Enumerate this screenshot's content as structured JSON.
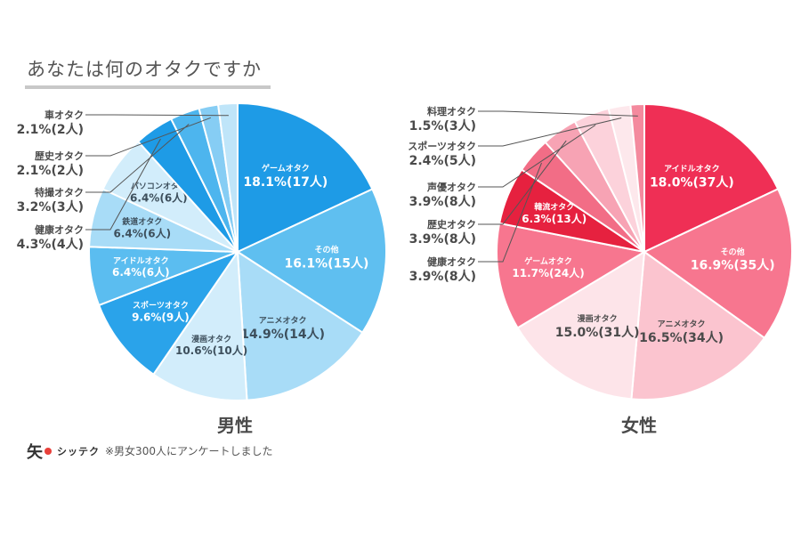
{
  "title": "あなたは何のオタクですか",
  "footnote": "※男女300人にアンケートしました",
  "logo": {
    "mark": "矢",
    "text": "シッテク"
  },
  "chart_data": [
    {
      "type": "pie",
      "label": "男性",
      "slices": [
        {
          "name": "ゲームオタク",
          "value": 18.1,
          "text": "18.1%(17人)",
          "color": "#1e9be6",
          "text_color": "#ffffff",
          "inside": true
        },
        {
          "name": "その他",
          "value": 16.1,
          "text": "16.1%(15人)",
          "color": "#5fbff0",
          "text_color": "#ffffff",
          "inside": true
        },
        {
          "name": "アニメオタク",
          "value": 14.9,
          "text": "14.9%(14人)",
          "color": "#a8dcf7",
          "text_color": "#3d4f5c",
          "inside": true
        },
        {
          "name": "漫画オタク",
          "value": 10.6,
          "text": "10.6%(10人)",
          "color": "#d2edfb",
          "text_color": "#3d4f5c",
          "inside": true
        },
        {
          "name": "スポーツオタク",
          "value": 9.6,
          "text": "9.6%(9人)",
          "color": "#2aa3ea",
          "text_color": "#ffffff",
          "inside": true
        },
        {
          "name": "アイドルオタク",
          "value": 6.4,
          "text": "6.4%(6人)",
          "color": "#5bbdf0",
          "text_color": "#ffffff",
          "inside": true
        },
        {
          "name": "鉄道オタク",
          "value": 6.4,
          "text": "6.4%(6人)",
          "color": "#a8dcf7",
          "text_color": "#3d4f5c",
          "inside": true
        },
        {
          "name": "パソコンオタク",
          "value": 6.4,
          "text": "6.4%(6人)",
          "color": "#d2edfb",
          "text_color": "#3d4f5c",
          "inside": true
        },
        {
          "name": "健康オタク",
          "value": 4.3,
          "text": "4.3%(4人)",
          "color": "#1e9be6",
          "text_color": "#3d4f5c",
          "inside": false
        },
        {
          "name": "特撮オタク",
          "value": 3.2,
          "text": "3.2%(3人)",
          "color": "#4db5ee",
          "text_color": "#3d4f5c",
          "inside": false
        },
        {
          "name": "歴史オタク",
          "value": 2.1,
          "text": "2.1%(2人)",
          "color": "#86cdf4",
          "text_color": "#3d4f5c",
          "inside": false
        },
        {
          "name": "車オタク",
          "value": 2.1,
          "text": "2.1%(2人)",
          "color": "#bfe5f9",
          "text_color": "#3d4f5c",
          "inside": false
        }
      ]
    },
    {
      "type": "pie",
      "label": "女性",
      "slices": [
        {
          "name": "アイドルオタク",
          "value": 18.0,
          "text": "18.0%(37人)",
          "color": "#ef2f55",
          "text_color": "#ffffff",
          "inside": true
        },
        {
          "name": "その他",
          "value": 16.9,
          "text": "16.9%(35人)",
          "color": "#f7768f",
          "text_color": "#ffffff",
          "inside": true
        },
        {
          "name": "アニメオタク",
          "value": 16.5,
          "text": "16.5%(34人)",
          "color": "#fbc4cf",
          "text_color": "#4a4a4a",
          "inside": true
        },
        {
          "name": "漫画オタク",
          "value": 15.0,
          "text": "15.0%(31人)",
          "color": "#fde4e9",
          "text_color": "#4a4a4a",
          "inside": true
        },
        {
          "name": "ゲームオタク",
          "value": 11.7,
          "text": "11.7%(24人)",
          "color": "#f7768f",
          "text_color": "#ffffff",
          "inside": true
        },
        {
          "name": "韓流オタク",
          "value": 6.3,
          "text": "6.3%(13人)",
          "color": "#e6213f",
          "text_color": "#ffffff",
          "inside": true
        },
        {
          "name": "健康オタク",
          "value": 3.9,
          "text": "3.9%(8人)",
          "color": "#f26d86",
          "text_color": "#4a4a4a",
          "inside": false
        },
        {
          "name": "歴史オタク",
          "value": 3.9,
          "text": "3.9%(8人)",
          "color": "#f7a3b4",
          "text_color": "#4a4a4a",
          "inside": false
        },
        {
          "name": "声優オタク",
          "value": 3.9,
          "text": "3.9%(8人)",
          "color": "#fcd2db",
          "text_color": "#4a4a4a",
          "inside": false
        },
        {
          "name": "スポーツオタク",
          "value": 2.4,
          "text": "2.4%(5人)",
          "color": "#fde8ec",
          "text_color": "#4a4a4a",
          "inside": false
        },
        {
          "name": "料理オタク",
          "value": 1.5,
          "text": "1.5%(3人)",
          "color": "#f48a9e",
          "text_color": "#4a4a4a",
          "inside": false
        }
      ]
    }
  ]
}
